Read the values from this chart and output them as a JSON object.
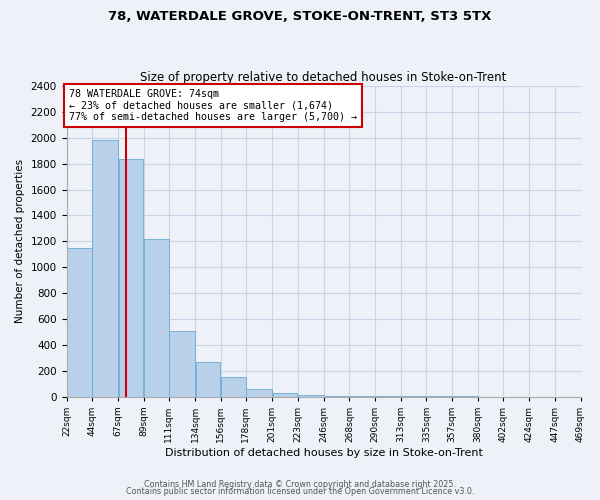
{
  "title1": "78, WATERDALE GROVE, STOKE-ON-TRENT, ST3 5TX",
  "title2": "Size of property relative to detached houses in Stoke-on-Trent",
  "xlabel": "Distribution of detached houses by size in Stoke-on-Trent",
  "ylabel": "Number of detached properties",
  "property_size": 74,
  "property_label": "78 WATERDALE GROVE: 74sqm",
  "annotation_line1": "← 23% of detached houses are smaller (1,674)",
  "annotation_line2": "77% of semi-detached houses are larger (5,700) →",
  "bins": [
    22,
    44,
    67,
    89,
    111,
    134,
    156,
    178,
    201,
    223,
    246,
    268,
    290,
    313,
    335,
    357,
    380,
    402,
    424,
    447,
    469
  ],
  "bin_labels": [
    "22sqm",
    "44sqm",
    "67sqm",
    "89sqm",
    "111sqm",
    "134sqm",
    "156sqm",
    "178sqm",
    "201sqm",
    "223sqm",
    "246sqm",
    "268sqm",
    "290sqm",
    "313sqm",
    "335sqm",
    "357sqm",
    "380sqm",
    "402sqm",
    "424sqm",
    "447sqm",
    "469sqm"
  ],
  "counts": [
    1150,
    1980,
    1840,
    1220,
    510,
    270,
    150,
    60,
    30,
    15,
    8,
    4,
    2,
    2,
    1,
    1,
    0,
    0,
    0,
    0
  ],
  "bar_color": "#b8d0ea",
  "bar_edge_color": "#6aaad4",
  "vline_color": "#cc0000",
  "annotation_box_color": "#ffffff",
  "annotation_box_edge": "#cc0000",
  "grid_color": "#c8d4e8",
  "bg_color": "#eef2f8",
  "footer1": "Contains HM Land Registry data © Crown copyright and database right 2025.",
  "footer2": "Contains public sector information licensed under the Open Government Licence v3.0.",
  "ylim": [
    0,
    2400
  ],
  "yticks": [
    0,
    200,
    400,
    600,
    800,
    1000,
    1200,
    1400,
    1600,
    1800,
    2000,
    2200,
    2400
  ]
}
